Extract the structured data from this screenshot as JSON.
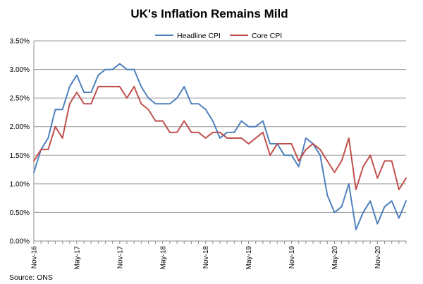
{
  "chart_data": {
    "type": "line",
    "title": "UK's Inflation Remains Mild",
    "source": "Source: ONS",
    "xlabel": "",
    "ylabel": "",
    "ylim": [
      0,
      3.5
    ],
    "yticks": [
      0,
      0.5,
      1.0,
      1.5,
      2.0,
      2.5,
      3.0,
      3.5
    ],
    "ytick_labels": [
      "0.00%",
      "0.50%",
      "1.00%",
      "1.50%",
      "2.00%",
      "2.50%",
      "3.00%",
      "3.50%"
    ],
    "grid": true,
    "legend_position": "top-center",
    "x": [
      "Nov-16",
      "Dec-16",
      "Jan-17",
      "Feb-17",
      "Mar-17",
      "Apr-17",
      "May-17",
      "Jun-17",
      "Jul-17",
      "Aug-17",
      "Sep-17",
      "Oct-17",
      "Nov-17",
      "Dec-17",
      "Jan-18",
      "Feb-18",
      "Mar-18",
      "Apr-18",
      "May-18",
      "Jun-18",
      "Jul-18",
      "Aug-18",
      "Sep-18",
      "Oct-18",
      "Nov-18",
      "Dec-18",
      "Jan-19",
      "Feb-19",
      "Mar-19",
      "Apr-19",
      "May-19",
      "Jun-19",
      "Jul-19",
      "Aug-19",
      "Sep-19",
      "Oct-19",
      "Nov-19",
      "Dec-19",
      "Jan-20",
      "Feb-20",
      "Mar-20",
      "Apr-20",
      "May-20",
      "Jun-20",
      "Jul-20",
      "Aug-20",
      "Sep-20",
      "Oct-20",
      "Nov-20",
      "Dec-20",
      "Jan-21",
      "Feb-21",
      "Mar-21"
    ],
    "xtick_labels": [
      "Nov-16",
      "May-17",
      "Nov-17",
      "May-18",
      "Nov-18",
      "May-19",
      "Nov-19",
      "May-20",
      "Nov-20"
    ],
    "xtick_indices": [
      0,
      6,
      12,
      18,
      24,
      30,
      36,
      42,
      48
    ],
    "series": [
      {
        "name": "Headline CPI",
        "color": "#4f81bd",
        "values": [
          1.2,
          1.6,
          1.8,
          2.3,
          2.3,
          2.7,
          2.9,
          2.6,
          2.6,
          2.9,
          3.0,
          3.0,
          3.1,
          3.0,
          3.0,
          2.7,
          2.5,
          2.4,
          2.4,
          2.4,
          2.5,
          2.7,
          2.4,
          2.4,
          2.3,
          2.1,
          1.8,
          1.9,
          1.9,
          2.1,
          2.0,
          2.0,
          2.1,
          1.7,
          1.7,
          1.5,
          1.5,
          1.3,
          1.8,
          1.7,
          1.5,
          0.8,
          0.5,
          0.6,
          1.0,
          0.2,
          0.5,
          0.7,
          0.3,
          0.6,
          0.7,
          0.4,
          0.7
        ]
      },
      {
        "name": "Core CPI",
        "color": "#c0504d",
        "values": [
          1.4,
          1.6,
          1.6,
          2.0,
          1.8,
          2.4,
          2.6,
          2.4,
          2.4,
          2.7,
          2.7,
          2.7,
          2.7,
          2.5,
          2.7,
          2.4,
          2.3,
          2.1,
          2.1,
          1.9,
          1.9,
          2.1,
          1.9,
          1.9,
          1.8,
          1.9,
          1.9,
          1.8,
          1.8,
          1.8,
          1.7,
          1.8,
          1.9,
          1.5,
          1.7,
          1.7,
          1.7,
          1.4,
          1.6,
          1.7,
          1.6,
          1.4,
          1.2,
          1.4,
          1.8,
          0.9,
          1.3,
          1.5,
          1.1,
          1.4,
          1.4,
          0.9,
          1.1
        ]
      }
    ]
  }
}
